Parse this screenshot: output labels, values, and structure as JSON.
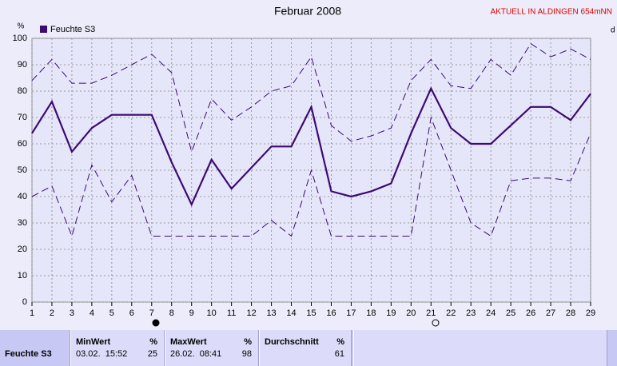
{
  "chart_data": {
    "type": "line",
    "title": "Februar 2008",
    "annotation": "AKTUELL IN ALDINGEN 654mNN",
    "y_unit": "%",
    "x_unit": "d",
    "x": [
      1,
      2,
      3,
      4,
      5,
      6,
      7,
      8,
      9,
      10,
      11,
      12,
      13,
      14,
      15,
      16,
      17,
      18,
      19,
      20,
      21,
      22,
      23,
      24,
      25,
      26,
      27,
      28,
      29
    ],
    "xlim": [
      1,
      29
    ],
    "xticks": [
      1,
      2,
      3,
      4,
      5,
      6,
      7,
      8,
      9,
      10,
      11,
      12,
      13,
      14,
      15,
      16,
      17,
      18,
      19,
      20,
      21,
      22,
      23,
      24,
      25,
      26,
      27,
      28,
      29
    ],
    "ylim": [
      0,
      100
    ],
    "yticks": [
      0,
      10,
      20,
      30,
      40,
      50,
      60,
      70,
      80,
      90,
      100
    ],
    "grid": true,
    "series": [
      {
        "name": "Feuchte S3",
        "color": "#3c0a70",
        "style": "solid",
        "values": [
          64,
          76,
          57,
          66,
          71,
          71,
          71,
          53,
          37,
          54,
          43,
          51,
          59,
          59,
          74,
          42,
          40,
          42,
          45,
          64,
          81,
          66,
          60,
          60,
          67,
          74,
          74,
          69,
          79
        ]
      },
      {
        "color": "#3c0a70",
        "style": "dashed",
        "values": [
          84,
          92,
          83,
          83,
          86,
          90,
          94,
          87,
          57,
          77,
          69,
          74,
          80,
          82,
          93,
          67,
          61,
          63,
          66,
          84,
          92,
          82,
          81,
          92,
          86,
          98,
          93,
          96,
          92
        ]
      },
      {
        "color": "#3c0a70",
        "style": "dashed",
        "values": [
          40,
          44,
          25,
          52,
          38,
          48,
          25,
          25,
          25,
          25,
          25,
          25,
          31,
          25,
          50,
          25,
          25,
          25,
          25,
          25,
          70,
          50,
          30,
          25,
          46,
          47,
          47,
          46,
          64
        ]
      }
    ]
  },
  "table": {
    "row_label": "Feuchte S3",
    "columns": [
      {
        "title": "MinWert",
        "unit": "%",
        "time": "03.02.  15:52",
        "value": 25
      },
      {
        "title": "MaxWert",
        "unit": "%",
        "time": "26.02.  08:41",
        "value": 98
      },
      {
        "title": "Durchschnitt",
        "unit": "%",
        "value": 61
      }
    ]
  }
}
